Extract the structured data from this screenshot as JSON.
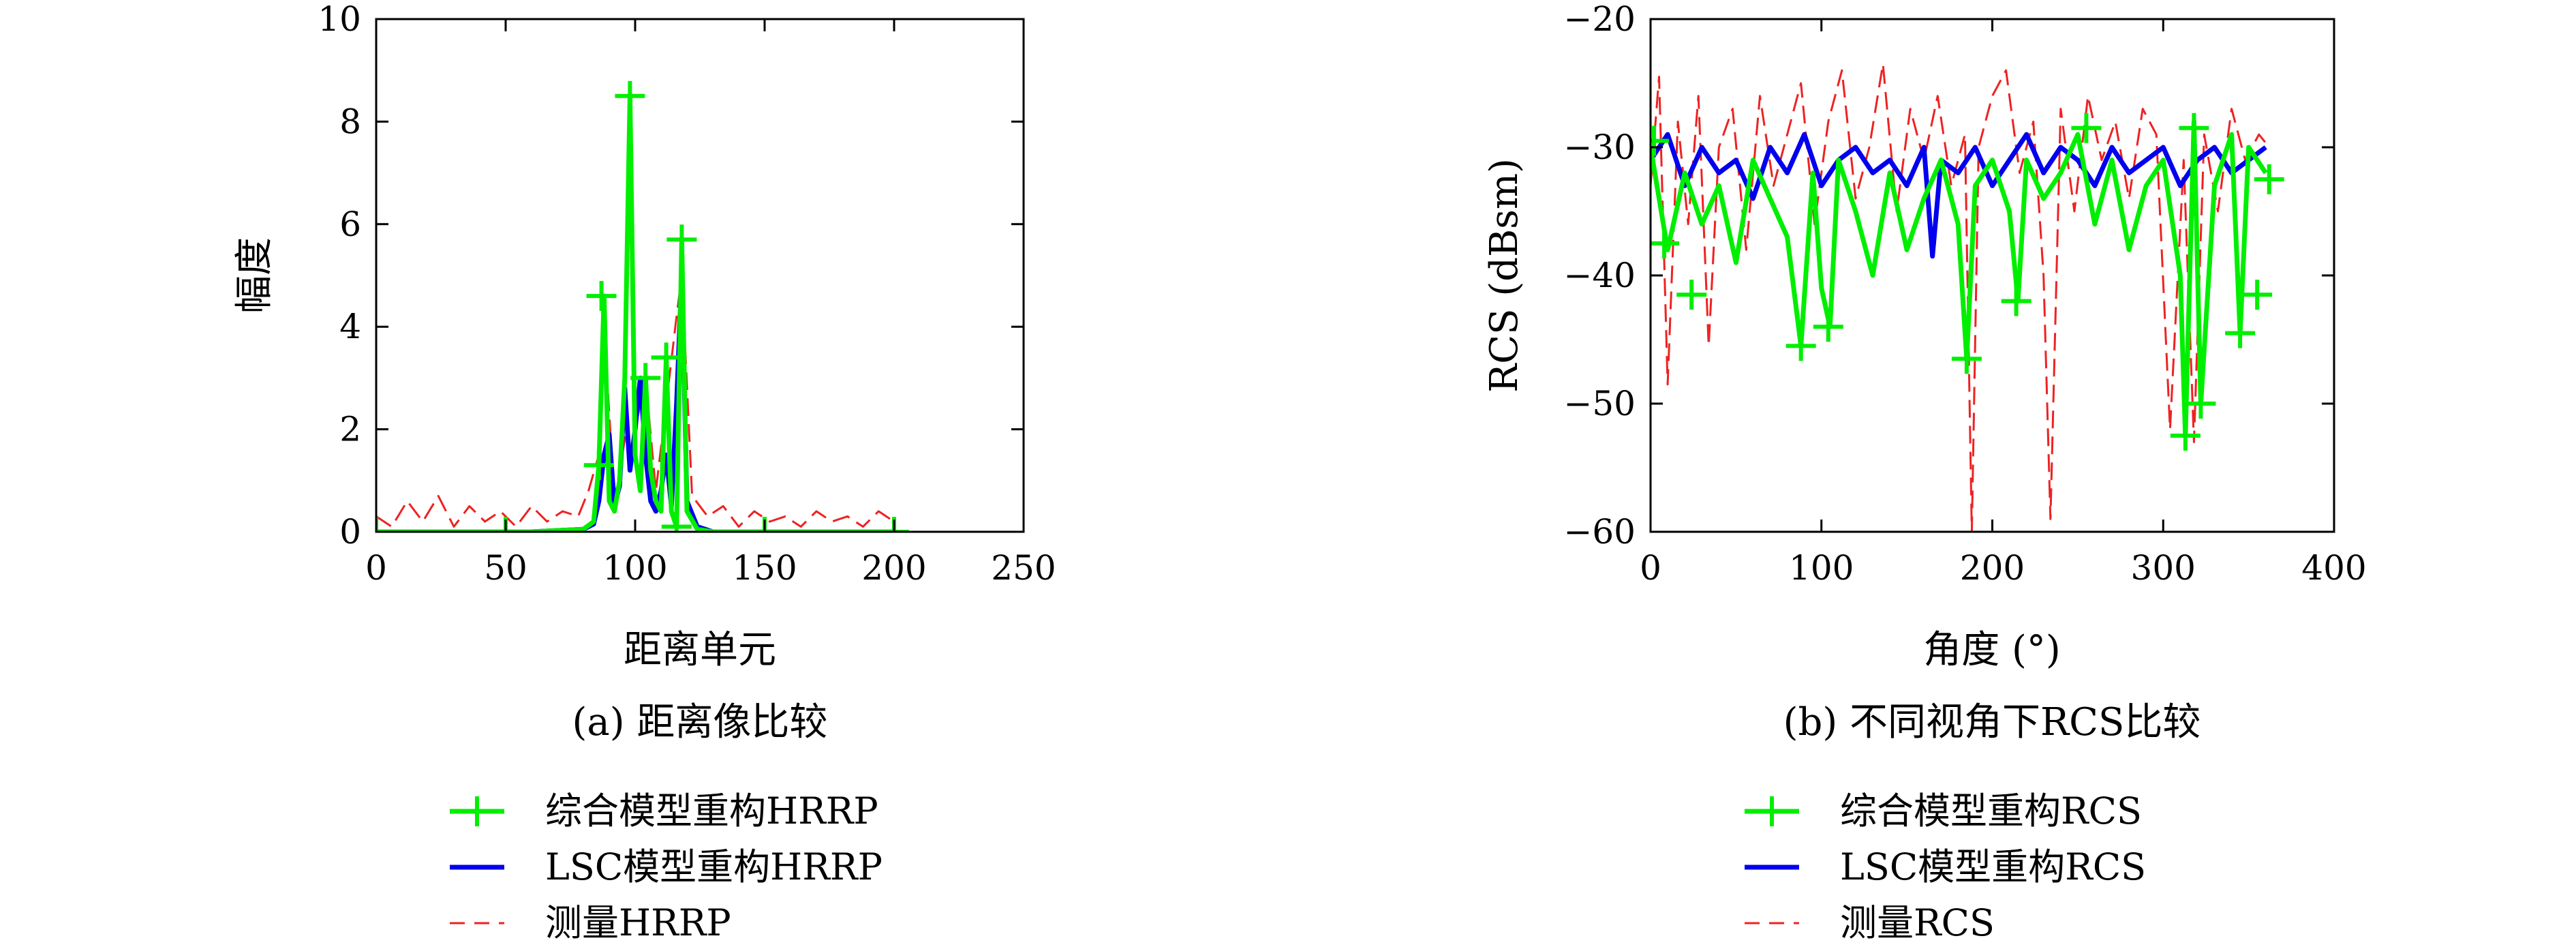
{
  "chart_data": [
    {
      "type": "line",
      "caption": "(a) 距离像比较",
      "xlabel": "距离单元",
      "ylabel": "幅度",
      "xlim": [
        0,
        250
      ],
      "ylim": [
        0,
        10
      ],
      "xticks": [
        0,
        50,
        100,
        150,
        200,
        250
      ],
      "yticks": [
        0,
        2,
        4,
        6,
        8,
        10
      ],
      "xtick_labels": [
        "0",
        "50",
        "100",
        "150",
        "200",
        "250"
      ],
      "ytick_labels": [
        "0",
        "2",
        "4",
        "6",
        "8",
        "10"
      ],
      "grid": false,
      "legend_position": "below",
      "series": [
        {
          "name": "综合模型重构HRRP",
          "color": "#00ee00",
          "style": "solid-plus-markers",
          "x": [
            0,
            20,
            40,
            60,
            80,
            84,
            86,
            88,
            90,
            92,
            94,
            96,
            98,
            100,
            102,
            104,
            106,
            108,
            110,
            112,
            114,
            116,
            118,
            120,
            124,
            130,
            150,
            175,
            200
          ],
          "y": [
            0,
            0,
            0,
            0,
            0.05,
            0.2,
            1.3,
            4.6,
            0.6,
            0.4,
            1.0,
            3.0,
            8.5,
            1.5,
            0.8,
            3.0,
            1.2,
            0.6,
            0.4,
            3.4,
            0.4,
            0.1,
            5.7,
            0.4,
            0.05,
            0,
            0,
            0,
            0
          ],
          "markers": [
            [
              0,
              0
            ],
            [
              50,
              0
            ],
            [
              86,
              1.3
            ],
            [
              87,
              4.6
            ],
            [
              98,
              8.5
            ],
            [
              104,
              3.0
            ],
            [
              112,
              3.4
            ],
            [
              116,
              0.1
            ],
            [
              118,
              5.7
            ],
            [
              150,
              0
            ],
            [
              200,
              0
            ]
          ]
        },
        {
          "name": "LSC模型重构HRRP",
          "color": "#0000ee",
          "style": "solid",
          "x": [
            0,
            20,
            40,
            60,
            80,
            84,
            86,
            88,
            90,
            92,
            94,
            96,
            98,
            100,
            102,
            104,
            106,
            108,
            110,
            112,
            114,
            116,
            118,
            120,
            124,
            130,
            150,
            175,
            200
          ],
          "y": [
            0,
            0,
            0,
            0,
            0.05,
            0.15,
            0.6,
            1.5,
            1.9,
            0.5,
            0.9,
            2.8,
            1.2,
            2.0,
            3.0,
            1.5,
            0.6,
            0.4,
            0.8,
            1.5,
            0.5,
            2.5,
            5.0,
            0.6,
            0.1,
            0,
            0,
            0,
            0
          ]
        },
        {
          "name": "测量HRRP",
          "color": "#ee2222",
          "style": "dashed",
          "x": [
            0,
            6,
            12,
            18,
            24,
            30,
            36,
            42,
            48,
            54,
            60,
            66,
            72,
            78,
            82,
            86,
            88,
            92,
            96,
            98,
            100,
            104,
            108,
            112,
            116,
            118,
            122,
            128,
            134,
            140,
            146,
            152,
            158,
            164,
            170,
            176,
            182,
            188,
            194,
            200
          ],
          "y": [
            0.3,
            0.1,
            0.6,
            0.2,
            0.7,
            0.1,
            0.5,
            0.2,
            0.4,
            0.1,
            0.5,
            0.2,
            0.4,
            0.3,
            0.8,
            1.5,
            4.0,
            0.6,
            1.8,
            8.2,
            2.0,
            3.0,
            0.8,
            2.5,
            4.2,
            5.0,
            0.7,
            0.3,
            0.5,
            0.1,
            0.4,
            0.2,
            0.3,
            0.1,
            0.4,
            0.2,
            0.3,
            0.1,
            0.4,
            0.2
          ]
        }
      ]
    },
    {
      "type": "line",
      "caption": "(b) 不同视角下RCS比较",
      "xlabel": "角度 (°)",
      "ylabel": "RCS (dBsm)",
      "xlim": [
        0,
        400
      ],
      "ylim": [
        -60,
        -20
      ],
      "xticks": [
        0,
        100,
        200,
        300,
        400
      ],
      "yticks": [
        -60,
        -50,
        -40,
        -30,
        -20
      ],
      "xtick_labels": [
        "0",
        "100",
        "200",
        "300",
        "400"
      ],
      "ytick_labels": [
        "−60",
        "−50",
        "−40",
        "−30",
        "−20"
      ],
      "grid": false,
      "legend_position": "below",
      "series": [
        {
          "name": "综合模型重构RCS",
          "color": "#00ee00",
          "style": "solid-plus-markers",
          "x": [
            0,
            10,
            20,
            30,
            40,
            50,
            60,
            70,
            80,
            88,
            95,
            100,
            105,
            110,
            120,
            130,
            140,
            150,
            160,
            170,
            180,
            185,
            190,
            200,
            210,
            215,
            220,
            230,
            240,
            250,
            260,
            270,
            280,
            290,
            300,
            310,
            313,
            318,
            322,
            330,
            340,
            345,
            350,
            360
          ],
          "y": [
            -30,
            -38,
            -32,
            -36,
            -33,
            -39,
            -31,
            -34,
            -37,
            -45.5,
            -32,
            -41,
            -44,
            -31,
            -35,
            -40,
            -32,
            -38,
            -34,
            -31,
            -36,
            -46.5,
            -33,
            -31,
            -35,
            -42,
            -31,
            -34,
            -32,
            -29,
            -36,
            -31,
            -38,
            -33,
            -31,
            -40,
            -52.5,
            -28,
            -50,
            -33,
            -29,
            -44.5,
            -30,
            -32
          ],
          "markers": [
            [
              2,
              -29.5
            ],
            [
              8,
              -37.5
            ],
            [
              24,
              -41.5
            ],
            [
              88,
              -45.5
            ],
            [
              104,
              -44
            ],
            [
              185,
              -46.5
            ],
            [
              214,
              -42
            ],
            [
              255,
              -28.5
            ],
            [
              313,
              -52.5
            ],
            [
              318,
              -28.5
            ],
            [
              322,
              -50
            ],
            [
              345,
              -44.5
            ],
            [
              355,
              -41.5
            ],
            [
              362,
              -32.5
            ]
          ]
        },
        {
          "name": "LSC模型重构RCS",
          "color": "#0000ee",
          "style": "solid",
          "x": [
            0,
            10,
            20,
            30,
            40,
            50,
            60,
            70,
            80,
            90,
            100,
            110,
            120,
            130,
            140,
            150,
            160,
            165,
            170,
            180,
            190,
            200,
            210,
            220,
            230,
            240,
            250,
            260,
            270,
            280,
            290,
            300,
            310,
            320,
            330,
            340,
            350,
            360
          ],
          "y": [
            -31,
            -29,
            -33,
            -30,
            -32,
            -31,
            -34,
            -30,
            -32,
            -29,
            -33,
            -31,
            -30,
            -32,
            -31,
            -33,
            -30,
            -38.5,
            -31,
            -32,
            -30,
            -33,
            -31,
            -29,
            -32,
            -30,
            -31,
            -33,
            -30,
            -32,
            -31,
            -30,
            -33,
            -31,
            -30,
            -32,
            -31,
            -30
          ]
        },
        {
          "name": "测量RCS",
          "color": "#ee2222",
          "style": "dashed",
          "x": [
            0,
            5,
            10,
            16,
            22,
            28,
            34,
            40,
            48,
            56,
            64,
            72,
            80,
            88,
            96,
            104,
            112,
            120,
            128,
            136,
            144,
            152,
            160,
            168,
            176,
            184,
            188,
            192,
            200,
            208,
            216,
            224,
            230,
            234,
            240,
            248,
            256,
            264,
            272,
            280,
            288,
            296,
            304,
            312,
            318,
            324,
            332,
            340,
            348,
            356,
            362
          ],
          "y": [
            -33,
            -24.5,
            -48.5,
            -28,
            -36,
            -26,
            -45.5,
            -30,
            -27,
            -38,
            -26,
            -33,
            -29,
            -25,
            -36,
            -28,
            -24,
            -34,
            -30,
            -23.5,
            -35,
            -27,
            -31,
            -26,
            -33,
            -29,
            -60,
            -30,
            -26,
            -24,
            -32,
            -28,
            -40,
            -59,
            -27,
            -35,
            -26,
            -31,
            -28,
            -34,
            -27,
            -29,
            -52,
            -31,
            -53,
            -29,
            -35,
            -27,
            -31,
            -29,
            -30
          ]
        }
      ]
    }
  ]
}
